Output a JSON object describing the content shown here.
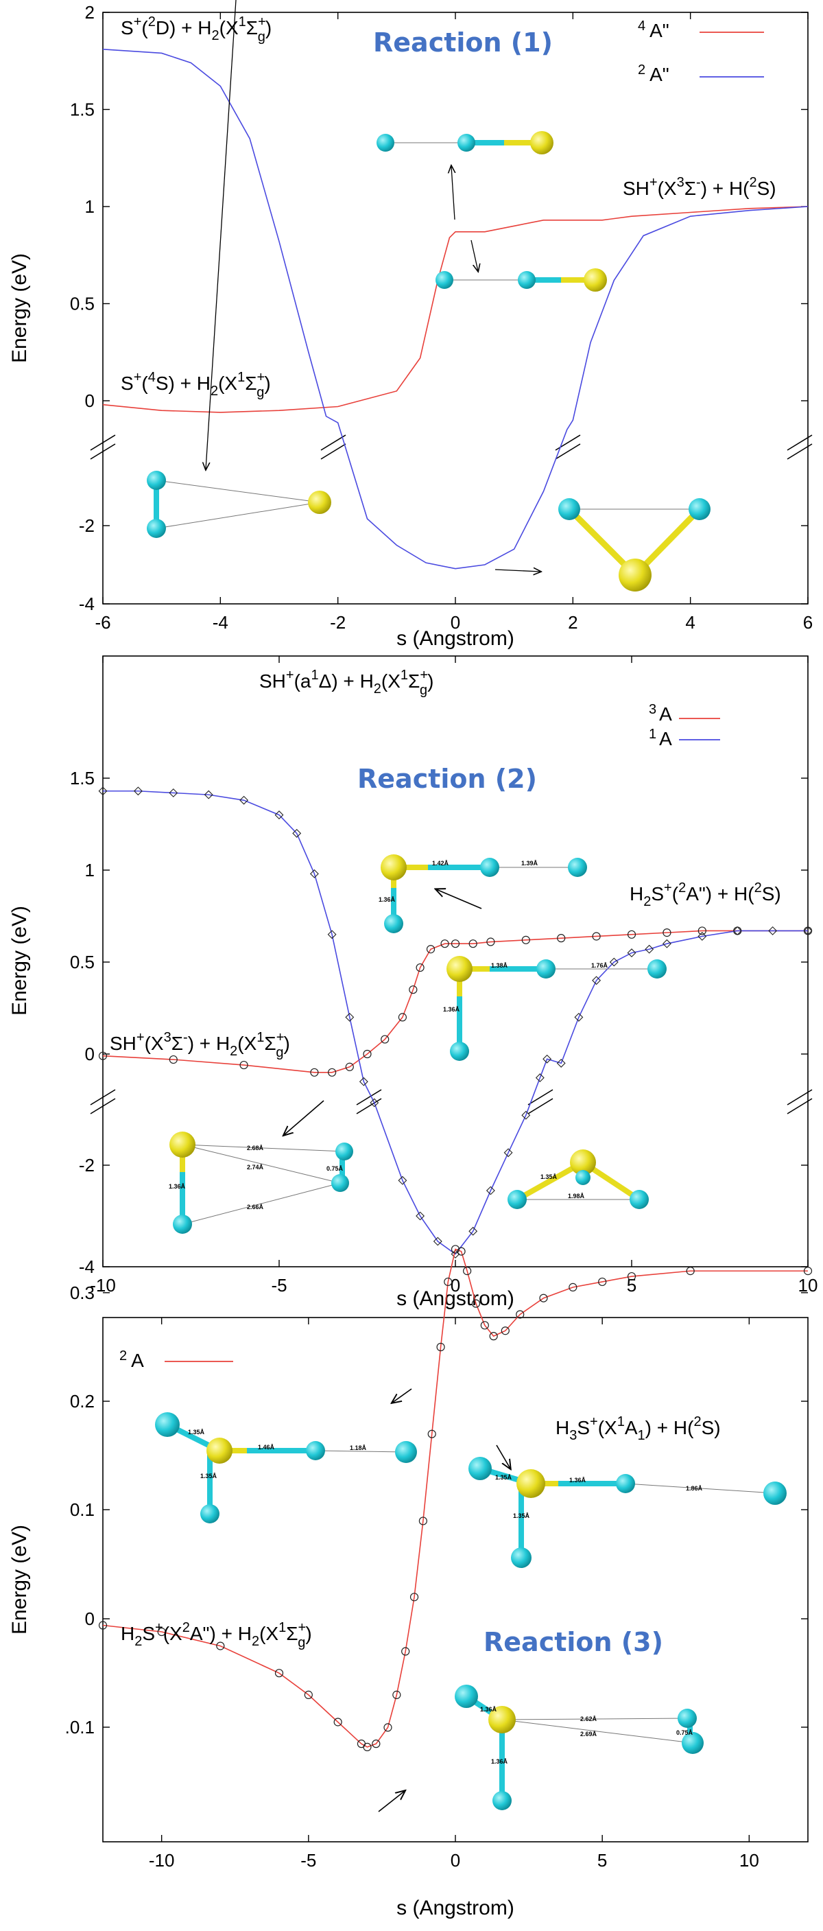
{
  "chart_data": [
    {
      "type": "line",
      "title": "Reaction (1)",
      "xlabel": "s (Angstrom)",
      "ylabel": "Energy (eV)",
      "xlim": [
        -6,
        6
      ],
      "xticks": [
        "-6",
        "-4",
        "-2",
        "0",
        "2",
        "4",
        "6"
      ],
      "yticks_top": [
        "0",
        "0.5",
        "1",
        "1.5",
        "2"
      ],
      "yticks_bottom": [
        "-2",
        "-4"
      ],
      "axis_break": true,
      "legend_position": "top-right",
      "series": [
        {
          "name": "4 A\"",
          "color": "#e8403a",
          "points": [
            [
              -6,
              -0.02
            ],
            [
              -5,
              -0.05
            ],
            [
              -4,
              -0.06
            ],
            [
              -3,
              -0.05
            ],
            [
              -2,
              -0.03
            ],
            [
              -1,
              0.05
            ],
            [
              -0.6,
              0.22
            ],
            [
              -0.3,
              0.62
            ],
            [
              -0.1,
              0.84
            ],
            [
              0,
              0.87
            ],
            [
              0.5,
              0.87
            ],
            [
              1,
              0.9
            ],
            [
              1.5,
              0.93
            ],
            [
              2,
              0.93
            ],
            [
              2.5,
              0.93
            ],
            [
              3,
              0.95
            ],
            [
              4,
              0.97
            ],
            [
              5,
              0.99
            ],
            [
              6,
              1.0
            ]
          ]
        },
        {
          "name": "2 A\"",
          "color": "#4a4ae0",
          "points": [
            [
              -6,
              1.81
            ],
            [
              -5,
              1.79
            ],
            [
              -4.5,
              1.74
            ],
            [
              -4,
              1.62
            ],
            [
              -3.5,
              1.35
            ],
            [
              -3,
              0.82
            ],
            [
              -2.5,
              0.25
            ],
            [
              -2.2,
              -0.08
            ],
            [
              -2,
              -0.5
            ],
            [
              -1.5,
              -1.9
            ],
            [
              -1,
              -2.5
            ],
            [
              -0.5,
              -2.95
            ],
            [
              0,
              -3.1
            ],
            [
              0.5,
              -3.0
            ],
            [
              1,
              -2.6
            ],
            [
              1.5,
              -1.5
            ],
            [
              1.9,
              -0.6
            ],
            [
              2,
              -0.1
            ],
            [
              2.3,
              0.3
            ],
            [
              2.7,
              0.62
            ],
            [
              3.2,
              0.85
            ],
            [
              4,
              0.95
            ],
            [
              5,
              0.98
            ],
            [
              6,
              1.0
            ]
          ]
        }
      ],
      "annotations": {
        "reactant_quartet": {
          "base": "S",
          "species": "(",
          "state": "4",
          "rest": "S) + H",
          "tail": "(X",
          "term": "Σ",
          "term_sup": "+",
          "term_sub": "g",
          "close": ")",
          "charge": "+",
          "n1": "2",
          "n2": "1"
        },
        "reactant_doublet": {
          "base": "S",
          "charge": "+",
          "pre": "(",
          "state": "2",
          "rest": "D) + H",
          "h2sub": "2",
          "tail": "(X",
          "n": "1",
          "term": "Σ",
          "term_sup": "+",
          "term_sub": "g",
          "close": ")"
        },
        "product": {
          "text_a": "SH",
          "charge": "+",
          "text_b": "(X",
          "mult": "3",
          "term": "Σ",
          "term_sup": "-",
          "text_c": ") + H(",
          "hstate": "2",
          "text_d": "S)"
        }
      }
    },
    {
      "type": "line",
      "title": "Reaction (2)",
      "xlabel": "s (Angstrom)",
      "ylabel": "Energy (eV)",
      "xlim": [
        -10,
        10
      ],
      "xticks": [
        "-10",
        "-5",
        "0",
        "5",
        "10"
      ],
      "yticks_top": [
        "0",
        "0.5",
        "1",
        "1.5"
      ],
      "yticks_bottom": [
        "-2",
        "-4"
      ],
      "axis_break": true,
      "legend_position": "top-right",
      "series": [
        {
          "name": "3 A",
          "color": "#e8403a",
          "points": [
            [
              -10,
              -0.01
            ],
            [
              -8,
              -0.03
            ],
            [
              -6,
              -0.06
            ],
            [
              -4,
              -0.1
            ],
            [
              -3.5,
              -0.1
            ],
            [
              -3,
              -0.07
            ],
            [
              -2.5,
              0.0
            ],
            [
              -2,
              0.08
            ],
            [
              -1.5,
              0.2
            ],
            [
              -1.2,
              0.35
            ],
            [
              -1,
              0.47
            ],
            [
              -0.7,
              0.57
            ],
            [
              -0.3,
              0.6
            ],
            [
              0,
              0.6
            ],
            [
              0.5,
              0.6
            ],
            [
              1,
              0.61
            ],
            [
              2,
              0.62
            ],
            [
              3,
              0.63
            ],
            [
              4,
              0.64
            ],
            [
              5,
              0.65
            ],
            [
              6,
              0.66
            ],
            [
              7,
              0.67
            ],
            [
              8,
              0.67
            ],
            [
              10,
              0.67
            ]
          ]
        },
        {
          "name": "1 A",
          "color": "#4a4ae0",
          "points": [
            [
              -10,
              1.43
            ],
            [
              -9,
              1.43
            ],
            [
              -8,
              1.42
            ],
            [
              -7,
              1.41
            ],
            [
              -6,
              1.38
            ],
            [
              -5,
              1.3
            ],
            [
              -4.5,
              1.2
            ],
            [
              -4,
              0.98
            ],
            [
              -3.5,
              0.65
            ],
            [
              -3,
              0.2
            ],
            [
              -2.6,
              -0.15
            ],
            [
              -2.3,
              -1.0
            ],
            [
              -1.5,
              -2.3
            ],
            [
              -1,
              -3.0
            ],
            [
              -0.5,
              -3.5
            ],
            [
              0,
              -3.75
            ],
            [
              0.5,
              -3.3
            ],
            [
              1,
              -2.5
            ],
            [
              1.5,
              -1.8
            ],
            [
              2,
              -1.2
            ],
            [
              2.4,
              -0.6
            ],
            [
              2.6,
              -0.3
            ],
            [
              3,
              -0.05
            ],
            [
              3.5,
              0.2
            ],
            [
              4,
              0.4
            ],
            [
              4.5,
              0.5
            ],
            [
              5,
              0.55
            ],
            [
              5.5,
              0.57
            ],
            [
              6,
              0.6
            ],
            [
              7,
              0.64
            ],
            [
              8,
              0.67
            ],
            [
              9,
              0.67
            ],
            [
              10,
              0.67
            ]
          ]
        }
      ],
      "annotations": {
        "singlet_reactant": {
          "a": "SH",
          "charge": "+",
          "b": "(a",
          "n": "1",
          "c": "Δ) + H",
          "h2sub": "2",
          "d": "(X",
          "n2": "1",
          "term": "Σ",
          "term_sup": "+",
          "term_sub": "g",
          "e": ")"
        },
        "triplet_reactant": {
          "a": "SH",
          "charge": "+",
          "b": "(X",
          "n": "3",
          "term": "Σ",
          "term_sup": "-",
          "c": ") + H",
          "h2sub": "2",
          "d": "(X",
          "n2": "1",
          "term2": "Σ",
          "term2_sup": "+",
          "term2_sub": "g",
          "e": ")"
        },
        "product": {
          "a": "H",
          "sub": "2",
          "b": "S",
          "charge": "+",
          "c": "(",
          "n": "2",
          "d": "A\") + H(",
          "hstate": "2",
          "e": "S)"
        }
      },
      "bond_labels": {
        "ts_upper": [
          "1.42Å",
          "1.39Å",
          "1.36Å"
        ],
        "product": [
          "1.38Å",
          "1.76Å",
          "1.36Å"
        ],
        "reactant": [
          "2.68Å",
          "2.74Å",
          "1.36Å",
          "0.75Å",
          "2.66Å"
        ],
        "minimum": [
          "1.35Å",
          "1.98Å"
        ]
      }
    },
    {
      "type": "line",
      "title": "Reaction (3)",
      "xlabel": "s (Angstrom)",
      "ylabel": "Energy (eV)",
      "xlim": [
        -12,
        12
      ],
      "xticks": [
        "-10",
        "-5",
        "0",
        "5",
        "10"
      ],
      "ylim": [
        -0.125,
        0.35
      ],
      "yticks": [
        "0.3",
        "0.2",
        "0.1",
        "0",
        ".0.1"
      ],
      "legend_position": "top-left",
      "series": [
        {
          "name": "2 A",
          "color": "#e8403a",
          "points": [
            [
              -12,
              -0.006
            ],
            [
              -10,
              -0.012
            ],
            [
              -8,
              -0.025
            ],
            [
              -6,
              -0.05
            ],
            [
              -5,
              -0.07
            ],
            [
              -4,
              -0.095
            ],
            [
              -3.2,
              -0.115
            ],
            [
              -3,
              -0.118
            ],
            [
              -2.7,
              -0.115
            ],
            [
              -2.3,
              -0.1
            ],
            [
              -2,
              -0.07
            ],
            [
              -1.7,
              -0.03
            ],
            [
              -1.4,
              0.02
            ],
            [
              -1.1,
              0.09
            ],
            [
              -0.8,
              0.17
            ],
            [
              -0.5,
              0.25
            ],
            [
              -0.25,
              0.31
            ],
            [
              0,
              0.34
            ],
            [
              0.2,
              0.338
            ],
            [
              0.4,
              0.32
            ],
            [
              0.7,
              0.29
            ],
            [
              1,
              0.27
            ],
            [
              1.3,
              0.26
            ],
            [
              1.7,
              0.265
            ],
            [
              2.2,
              0.28
            ],
            [
              3,
              0.295
            ],
            [
              4,
              0.305
            ],
            [
              5,
              0.31
            ],
            [
              6,
              0.315
            ],
            [
              8,
              0.32
            ],
            [
              12,
              0.32
            ]
          ]
        }
      ],
      "annotations": {
        "product": {
          "a": "H",
          "sub": "3",
          "b": "S",
          "charge": "+",
          "c": "(X",
          "n": "1",
          "d": "A",
          "sub2": "1",
          "e": ") + H(",
          "hstate": "2",
          "f": "S)"
        },
        "reactant": {
          "a": "H",
          "sub": "2",
          "b": "S",
          "charge": "+",
          "c": "(X",
          "n": "2",
          "d": "A\") + H",
          "h2sub": "2",
          "e": "(X",
          "n2": "1",
          "term": "Σ",
          "term_sup": "+",
          "term_sub": "g",
          "f": ")"
        }
      },
      "bond_labels": {
        "upper_left": [
          "1.35Å",
          "1.46Å",
          "1.18Å",
          "1.35Å"
        ],
        "upper_right": [
          "1.35Å",
          "1.36Å",
          "1.86Å",
          "1.35Å"
        ],
        "lower": [
          "1.36Å",
          "2.62Å",
          "2.69Å",
          "0.75Å",
          "1.36Å"
        ]
      }
    }
  ]
}
